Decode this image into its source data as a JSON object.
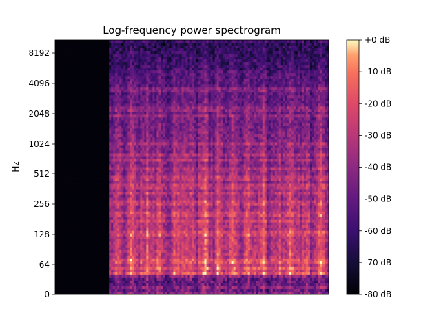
{
  "chart_data": {
    "type": "heatmap",
    "title": "Log-frequency power spectrogram",
    "xlabel": "",
    "ylabel": "Hz",
    "y_scale": "log2",
    "y_ticks": [
      "0",
      "64",
      "128",
      "256",
      "512",
      "1024",
      "2048",
      "4096",
      "8192"
    ],
    "x_ticks": [],
    "colormap": "magma",
    "colorbar": {
      "ticks": [
        "+0 dB",
        "-10 dB",
        "-20 dB",
        "-30 dB",
        "-40 dB",
        "-50 dB",
        "-60 dB",
        "-70 dB",
        "-80 dB"
      ],
      "range_db": [
        -80,
        0
      ]
    },
    "silence_fraction_start": 0.195,
    "grid": false,
    "legend": "colorbar-right"
  }
}
